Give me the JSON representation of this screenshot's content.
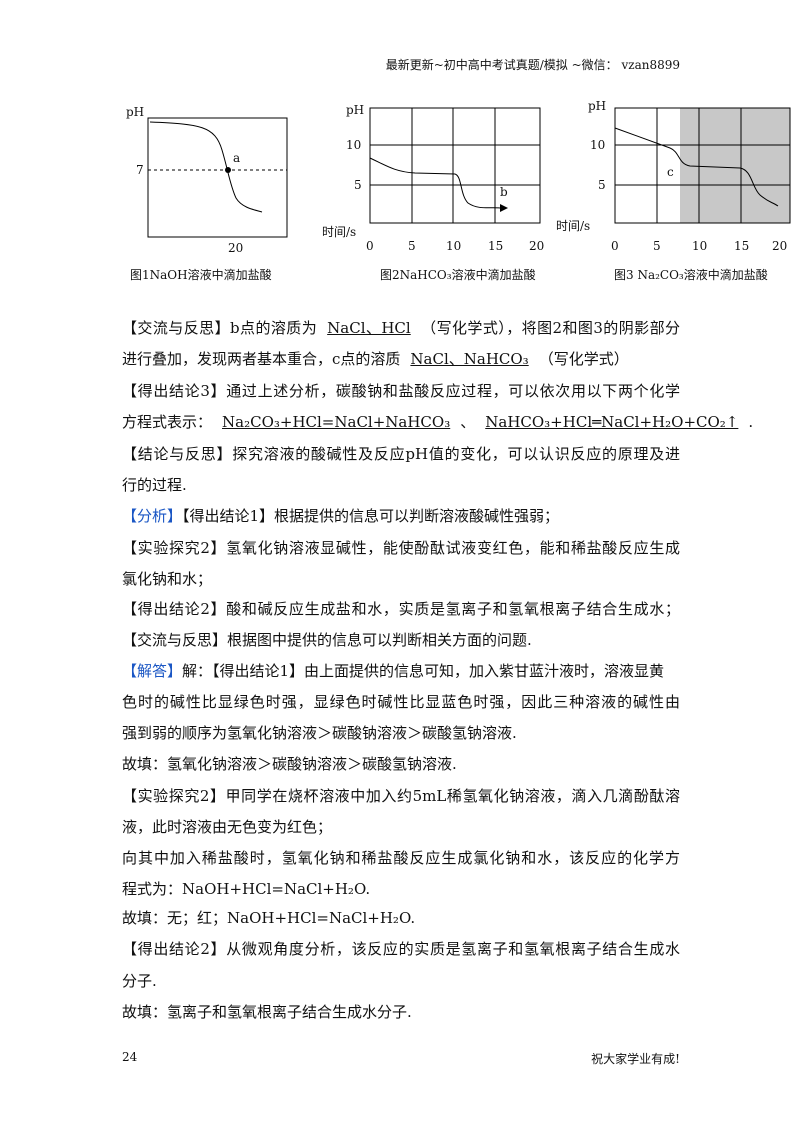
{
  "header": "最新更新~初中高中考试真题/模拟 ~微信： vzan8899",
  "figures": [
    {
      "y_axis_label": "pH",
      "y_ticks": [
        "7"
      ],
      "x_ticks": [
        "20"
      ],
      "point_label": "a",
      "caption": "图1NaOH溶液中滴加盐酸"
    },
    {
      "y_axis_label": "pH",
      "y_ticks": [
        "10",
        "5"
      ],
      "x_axis_label": "时间/s",
      "x_ticks": [
        "0",
        "5",
        "10",
        "15",
        "20"
      ],
      "point_label": "b",
      "caption": "图2NaHCO₃溶液中滴加盐酸"
    },
    {
      "y_axis_label": "pH",
      "y_ticks": [
        "10",
        "5"
      ],
      "x_axis_label": "时间/s",
      "x_ticks": [
        "0",
        "5",
        "10",
        "15",
        "20"
      ],
      "point_label": "c",
      "caption": "图3 Na₂CO₃溶液中滴加盐酸"
    }
  ],
  "content": {
    "lines": [
      [
        "【交流与反思】b点的溶质为",
        "NaCl、HCl",
        "（写化学式），将图2和图3的阴影部分"
      ],
      [
        "进行叠加，发现两者基本重合，c点的溶质",
        "NaCl、NaHCO₃",
        "（写化学式）"
      ],
      [
        "【得出结论3】通过上述分析，碳酸钠和盐酸反应过程，可以依次用以下两个化学"
      ],
      [
        "方程式表示：",
        "Na₂CO₃+HCl=NaCl+NaHCO₃",
        "、",
        "NaHCO₃+HCl═NaCl+H₂O+CO₂↑",
        "."
      ],
      [
        "【结论与反思】探究溶液的酸碱性及反应pH值的变化，可以认识反应的原理及进"
      ],
      [
        "行的过程."
      ],
      [
        "【分析】",
        "【得出结论1】根据提供的信息可以判断溶液酸碱性强弱；"
      ],
      [
        "【实验探究2】氢氧化钠溶液显碱性，能使酚酞试液变红色，能和稀盐酸反应生成"
      ],
      [
        "氯化钠和水；"
      ],
      [
        "【得出结论2】酸和碱反应生成盐和水，实质是氢离子和氢氧根离子结合生成水；"
      ],
      [
        "【交流与反思】根据图中提供的信息可以判断相关方面的问题."
      ],
      [
        "【解答】",
        "解：【得出结论1】由上面提供的信息可知，加入紫甘蓝汁液时，溶液显黄"
      ],
      [
        "色时的碱性比显绿色时强，显绿色时碱性比显蓝色时强，因此三种溶液的碱性由"
      ],
      [
        "强到弱的顺序为氢氧化钠溶液＞碳酸钠溶液＞碳酸氢钠溶液."
      ],
      [
        "故填：氢氧化钠溶液＞碳酸钠溶液＞碳酸氢钠溶液."
      ],
      [
        "【实验探究2】甲同学在烧杯溶液中加入约5mL稀氢氧化钠溶液，滴入几滴酚酞溶"
      ],
      [
        "液，此时溶液由无色变为红色；"
      ],
      [
        "向其中加入稀盐酸时，氢氧化钠和稀盐酸反应生成氯化钠和水，该反应的化学方"
      ],
      [
        "程式为：NaOH+HCl=NaCl+H₂O."
      ],
      [
        "故填：无；红；NaOH+HCl=NaCl+H₂O."
      ],
      [
        "【得出结论2】从微观角度分析，该反应的实质是氢离子和氢氧根离子结合生成水"
      ],
      [
        "分子."
      ],
      [
        "故填：氢离子和氢氧根离子结合生成水分子."
      ]
    ]
  },
  "footer": {
    "page": "24",
    "motto": "祝大家学业有成!"
  }
}
